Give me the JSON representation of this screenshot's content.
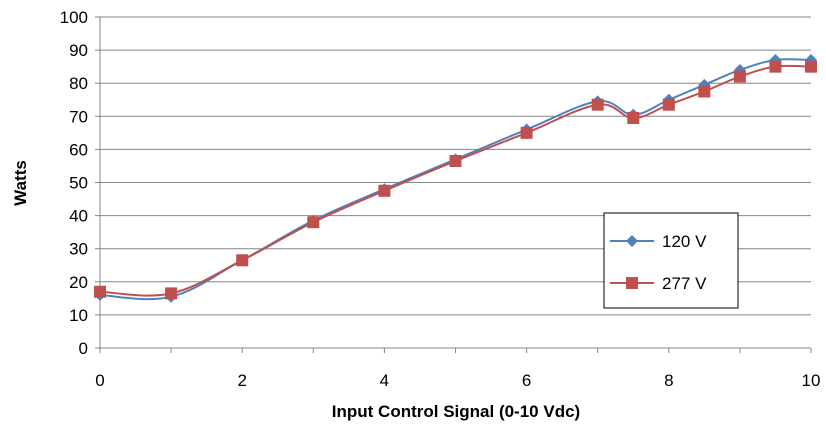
{
  "chart_data": {
    "type": "line",
    "title": "",
    "xlabel": "Input Control Signal (0-10 Vdc)",
    "ylabel": "Watts",
    "xlim": [
      0,
      10
    ],
    "ylim": [
      0,
      100
    ],
    "xticks": [
      0,
      2,
      4,
      6,
      8,
      10
    ],
    "yticks": [
      0,
      10,
      20,
      30,
      40,
      50,
      60,
      70,
      80,
      90,
      100
    ],
    "grid": "horizontal",
    "legend": "bottom-right",
    "series": [
      {
        "name": "120 V",
        "color": "#4F81BD",
        "marker": "diamond",
        "x": [
          0,
          1,
          2,
          3,
          4,
          5,
          6,
          7,
          7.5,
          8,
          8.5,
          9,
          9.5,
          10
        ],
        "y": [
          16,
          15.5,
          26.5,
          38.5,
          48,
          57,
          66,
          74.5,
          70.5,
          75,
          79.5,
          84,
          87,
          87
        ]
      },
      {
        "name": "277 V",
        "color": "#C0504D",
        "marker": "square",
        "x": [
          0,
          1,
          2,
          3,
          4,
          5,
          6,
          7,
          7.5,
          8,
          8.5,
          9,
          9.5,
          10
        ],
        "y": [
          17,
          16.5,
          26.5,
          38,
          47.5,
          56.5,
          65,
          73.5,
          69.5,
          73.5,
          77.5,
          82,
          85,
          85
        ]
      }
    ]
  }
}
